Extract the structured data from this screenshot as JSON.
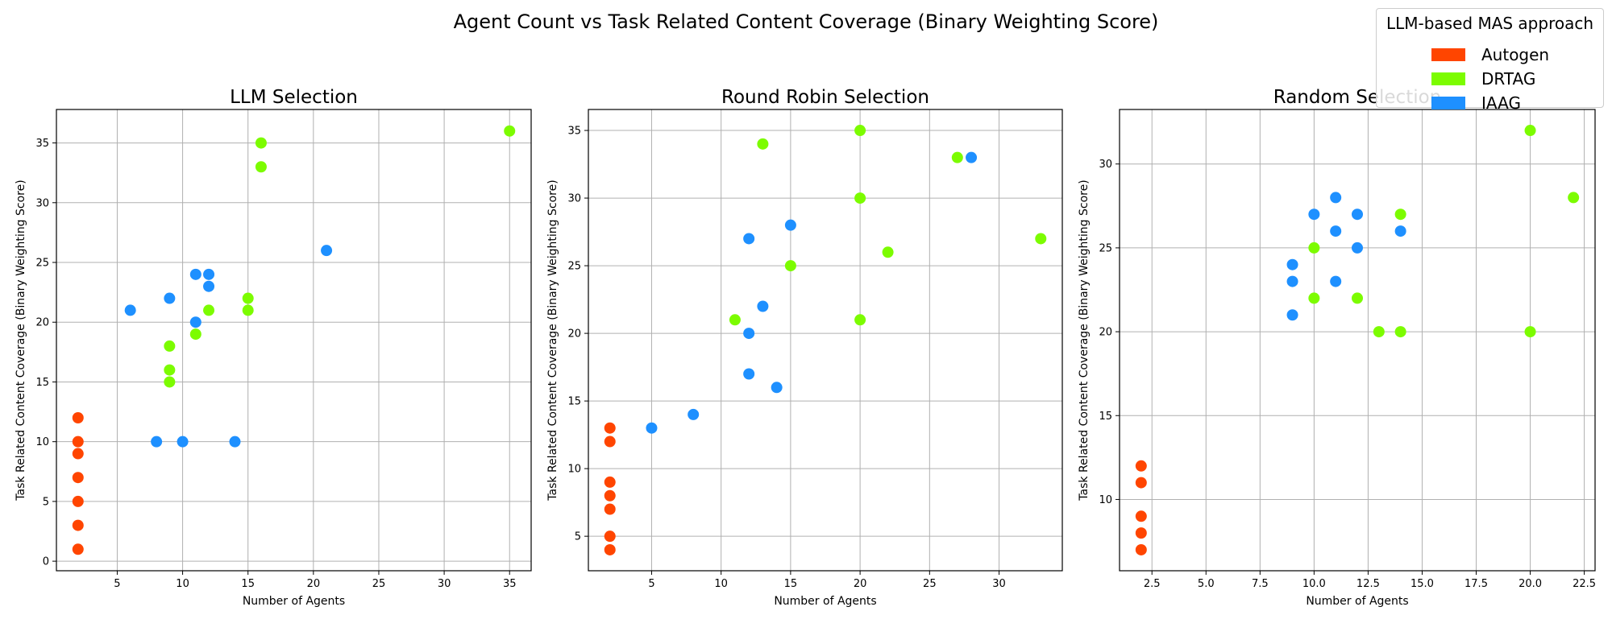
{
  "suptitle": "Agent Count vs Task Related Content Coverage (Binary Weighting Score)",
  "legend": {
    "title": "LLM-based MAS approach",
    "entries": [
      {
        "name": "Autogen",
        "color": "#ff4500"
      },
      {
        "name": "DRTAG",
        "color": "#7cfc00"
      },
      {
        "name": "IAAG",
        "color": "#1e90ff"
      }
    ]
  },
  "chart_data": [
    {
      "type": "scatter",
      "title": "LLM Selection",
      "xlabel": "Number of Agents",
      "ylabel": "Task Related Content Coverage (Binary Weighting Score)",
      "xlim": [
        0.35,
        36.65
      ],
      "ylim": [
        -0.8,
        37.8
      ],
      "xticks": [
        5,
        10,
        15,
        20,
        25,
        30,
        35
      ],
      "yticks": [
        0,
        5,
        10,
        15,
        20,
        25,
        30,
        35
      ],
      "grid": true,
      "series": [
        {
          "name": "Autogen",
          "color": "#ff4500",
          "points": [
            [
              2,
              1
            ],
            [
              2,
              3
            ],
            [
              2,
              5
            ],
            [
              2,
              7
            ],
            [
              2,
              9
            ],
            [
              2,
              10
            ],
            [
              2,
              12
            ]
          ]
        },
        {
          "name": "DRTAG",
          "color": "#7cfc00",
          "points": [
            [
              9,
              15
            ],
            [
              9,
              16
            ],
            [
              9,
              18
            ],
            [
              11,
              19
            ],
            [
              12,
              21
            ],
            [
              15,
              21
            ],
            [
              15,
              22
            ],
            [
              16,
              33
            ],
            [
              16,
              35
            ],
            [
              35,
              36
            ]
          ]
        },
        {
          "name": "IAAG",
          "color": "#1e90ff",
          "points": [
            [
              6,
              21
            ],
            [
              8,
              10
            ],
            [
              9,
              22
            ],
            [
              10,
              10
            ],
            [
              11,
              20
            ],
            [
              11,
              24
            ],
            [
              12,
              23
            ],
            [
              12,
              24
            ],
            [
              14,
              10
            ],
            [
              21,
              26
            ]
          ]
        }
      ]
    },
    {
      "type": "scatter",
      "title": "Round Robin Selection",
      "xlabel": "Number of Agents",
      "ylabel": "Task Related Content Coverage (Binary Weighting Score)",
      "xlim": [
        0.45,
        34.55
      ],
      "ylim": [
        2.45,
        36.55
      ],
      "xticks": [
        5,
        10,
        15,
        20,
        25,
        30
      ],
      "yticks": [
        5,
        10,
        15,
        20,
        25,
        30,
        35
      ],
      "grid": true,
      "series": [
        {
          "name": "Autogen",
          "color": "#ff4500",
          "points": [
            [
              2,
              4
            ],
            [
              2,
              5
            ],
            [
              2,
              7
            ],
            [
              2,
              8
            ],
            [
              2,
              9
            ],
            [
              2,
              12
            ],
            [
              2,
              13
            ]
          ]
        },
        {
          "name": "DRTAG",
          "color": "#7cfc00",
          "points": [
            [
              11,
              21
            ],
            [
              13,
              34
            ],
            [
              15,
              25
            ],
            [
              20,
              21
            ],
            [
              20,
              30
            ],
            [
              20,
              35
            ],
            [
              22,
              26
            ],
            [
              27,
              33
            ],
            [
              33,
              27
            ]
          ]
        },
        {
          "name": "IAAG",
          "color": "#1e90ff",
          "points": [
            [
              5,
              13
            ],
            [
              8,
              14
            ],
            [
              12,
              17
            ],
            [
              12,
              20
            ],
            [
              12,
              27
            ],
            [
              13,
              22
            ],
            [
              14,
              16
            ],
            [
              15,
              28
            ],
            [
              28,
              33
            ]
          ]
        }
      ]
    },
    {
      "type": "scatter",
      "title": "Random Selection",
      "xlabel": "Number of Agents",
      "ylabel": "Task Related Content Coverage (Binary Weighting Score)",
      "xlim": [
        1.0,
        23.0
      ],
      "ylim": [
        5.75,
        33.25
      ],
      "xticks": [
        2.5,
        5.0,
        7.5,
        10.0,
        12.5,
        15.0,
        17.5,
        20.0,
        22.5
      ],
      "yticks": [
        10,
        15,
        20,
        25,
        30
      ],
      "grid": true,
      "series": [
        {
          "name": "Autogen",
          "color": "#ff4500",
          "points": [
            [
              2,
              7
            ],
            [
              2,
              8
            ],
            [
              2,
              9
            ],
            [
              2,
              11
            ],
            [
              2,
              12
            ]
          ]
        },
        {
          "name": "DRTAG",
          "color": "#7cfc00",
          "points": [
            [
              10,
              22
            ],
            [
              10,
              25
            ],
            [
              12,
              22
            ],
            [
              13,
              20
            ],
            [
              14,
              20
            ],
            [
              14,
              27
            ],
            [
              20,
              20
            ],
            [
              20,
              32
            ],
            [
              22,
              28
            ]
          ]
        },
        {
          "name": "IAAG",
          "color": "#1e90ff",
          "points": [
            [
              9,
              21
            ],
            [
              9,
              23
            ],
            [
              9,
              24
            ],
            [
              10,
              27
            ],
            [
              11,
              23
            ],
            [
              11,
              26
            ],
            [
              11,
              28
            ],
            [
              12,
              25
            ],
            [
              12,
              27
            ],
            [
              14,
              26
            ]
          ]
        }
      ]
    }
  ]
}
